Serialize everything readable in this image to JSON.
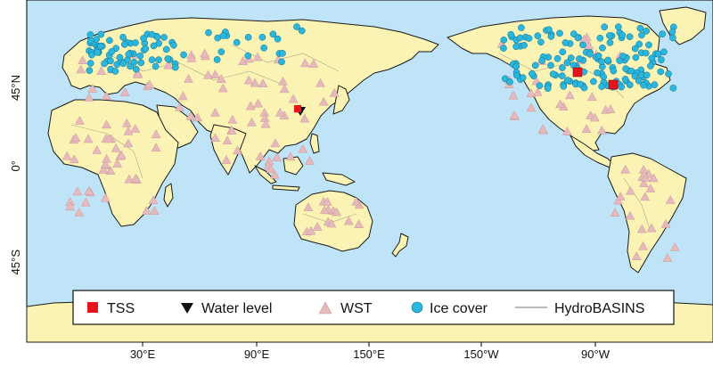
{
  "map": {
    "colors": {
      "ocean": "#bfe3f7",
      "land": "#fbf3b4",
      "coast": "#1a1a1a",
      "tss": "#e8141b",
      "water_level": "#111111",
      "wst": "#e7b9bb",
      "ice_cover": "#2bb6dd"
    },
    "lat_labels": [
      "45°N",
      "0°",
      "45°S"
    ],
    "lon_labels": [
      "30°E",
      "90°E",
      "150°E",
      "150°W",
      "90°W"
    ]
  },
  "legend": {
    "items": [
      {
        "symbol": "square-icon",
        "label": "TSS"
      },
      {
        "symbol": "triangle-down-icon",
        "label": "Water level"
      },
      {
        "symbol": "triangle-icon",
        "label": "WST"
      },
      {
        "symbol": "circle-icon",
        "label": "Ice cover"
      },
      {
        "symbol": "line-icon",
        "label": "HydroBASINS"
      }
    ]
  }
}
